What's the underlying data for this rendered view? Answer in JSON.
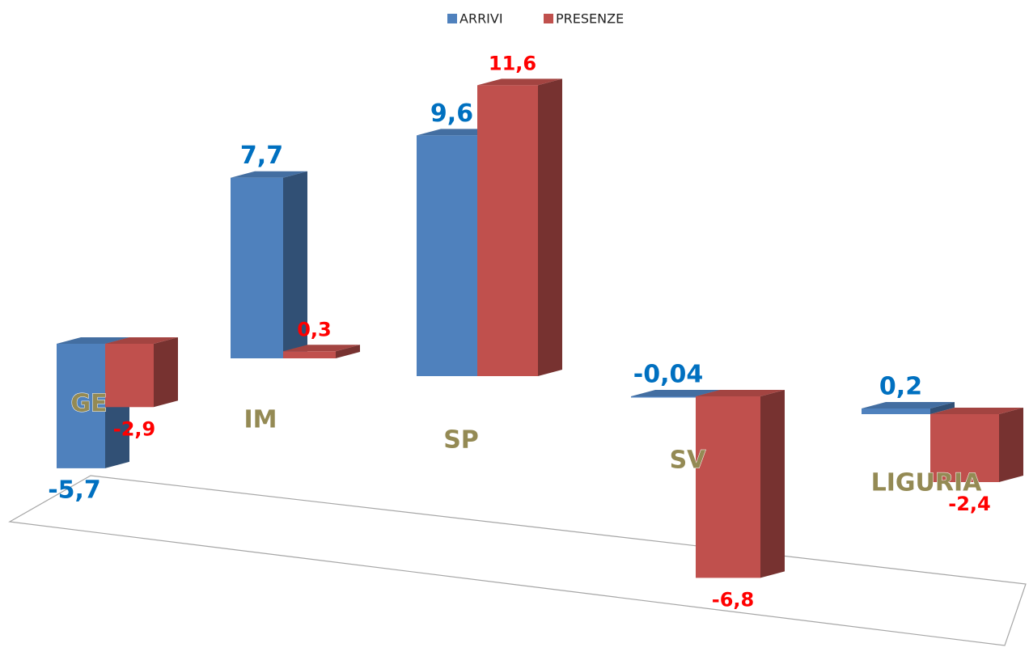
{
  "chart_data": {
    "type": "bar",
    "categories": [
      "GE",
      "IM",
      "SP",
      "SV",
      "LIGURIA"
    ],
    "series": [
      {
        "name": "ARRIVI",
        "color": "#4f81bd",
        "values": [
          -5.7,
          7.7,
          9.6,
          -0.04,
          0.2
        ],
        "value_labels": [
          "-5,7",
          "7,7",
          "9,6",
          "-0,04",
          "0,2"
        ]
      },
      {
        "name": "PRESENZE",
        "color": "#c0504d",
        "values": [
          -2.9,
          0.3,
          11.6,
          -6.8,
          -2.4
        ],
        "value_labels": [
          "-2,9",
          "0,3",
          "11,6",
          "-6,8",
          "-2,4"
        ]
      }
    ],
    "legend": "top"
  }
}
